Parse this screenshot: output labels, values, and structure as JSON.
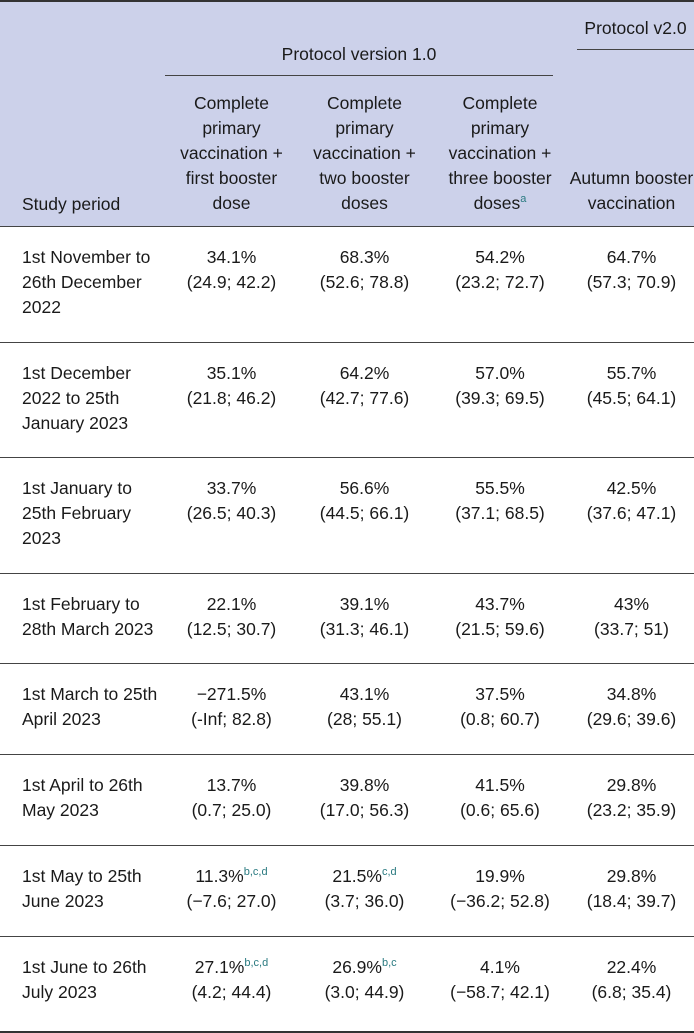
{
  "header": {
    "study_period": "Study period",
    "protocol_v1": "Protocol version 1.0",
    "protocol_v2": "Protocol v2.0",
    "columns": [
      "Complete primary vaccination + first booster dose",
      "Complete primary vaccination + two booster doses",
      "Complete primary vaccination + three booster doses",
      "Autumn booster vaccination"
    ],
    "col3_footnote": "a"
  },
  "rows": [
    {
      "period": "1st November to 26th December 2022",
      "c1": {
        "est": "34.1%",
        "ci": "(24.9; 42.2)",
        "fn": ""
      },
      "c2": {
        "est": "68.3%",
        "ci": "(52.6; 78.8)",
        "fn": ""
      },
      "c3": {
        "est": "54.2%",
        "ci": "(23.2; 72.7)",
        "fn": ""
      },
      "c4": {
        "est": "64.7%",
        "ci": "(57.3; 70.9)",
        "fn": ""
      }
    },
    {
      "period": "1st December 2022 to 25th January 2023",
      "c1": {
        "est": "35.1%",
        "ci": "(21.8; 46.2)",
        "fn": ""
      },
      "c2": {
        "est": "64.2%",
        "ci": "(42.7; 77.6)",
        "fn": ""
      },
      "c3": {
        "est": "57.0%",
        "ci": "(39.3; 69.5)",
        "fn": ""
      },
      "c4": {
        "est": "55.7%",
        "ci": "(45.5; 64.1)",
        "fn": ""
      }
    },
    {
      "period": "1st January to 25th February 2023",
      "c1": {
        "est": "33.7%",
        "ci": "(26.5; 40.3)",
        "fn": ""
      },
      "c2": {
        "est": "56.6%",
        "ci": "(44.5; 66.1)",
        "fn": ""
      },
      "c3": {
        "est": "55.5%",
        "ci": "(37.1; 68.5)",
        "fn": ""
      },
      "c4": {
        "est": "42.5%",
        "ci": "(37.6; 47.1)",
        "fn": ""
      }
    },
    {
      "period": "1st February to 28th March 2023",
      "c1": {
        "est": "22.1%",
        "ci": "(12.5; 30.7)",
        "fn": ""
      },
      "c2": {
        "est": "39.1%",
        "ci": "(31.3; 46.1)",
        "fn": ""
      },
      "c3": {
        "est": "43.7%",
        "ci": "(21.5; 59.6)",
        "fn": ""
      },
      "c4": {
        "est": "43%",
        "ci": "(33.7; 51)",
        "fn": ""
      }
    },
    {
      "period": "1st March to 25th April 2023",
      "c1": {
        "est": "−271.5%",
        "ci": "(-Inf; 82.8)",
        "fn": ""
      },
      "c2": {
        "est": "43.1%",
        "ci": "(28; 55.1)",
        "fn": ""
      },
      "c3": {
        "est": "37.5%",
        "ci": "(0.8; 60.7)",
        "fn": ""
      },
      "c4": {
        "est": "34.8%",
        "ci": "(29.6; 39.6)",
        "fn": ""
      }
    },
    {
      "period": "1st April to 26th May 2023",
      "c1": {
        "est": "13.7%",
        "ci": "(0.7; 25.0)",
        "fn": ""
      },
      "c2": {
        "est": "39.8%",
        "ci": "(17.0; 56.3)",
        "fn": ""
      },
      "c3": {
        "est": "41.5%",
        "ci": "(0.6; 65.6)",
        "fn": ""
      },
      "c4": {
        "est": "29.8%",
        "ci": "(23.2; 35.9)",
        "fn": ""
      }
    },
    {
      "period": "1st May to 25th June 2023",
      "c1": {
        "est": "11.3%",
        "ci": "(−7.6; 27.0)",
        "fn": "b,c,d"
      },
      "c2": {
        "est": "21.5%",
        "ci": "(3.7; 36.0)",
        "fn": "c,d"
      },
      "c3": {
        "est": "19.9%",
        "ci": "(−36.2; 52.8)",
        "fn": ""
      },
      "c4": {
        "est": "29.8%",
        "ci": "(18.4; 39.7)",
        "fn": ""
      }
    },
    {
      "period": "1st June to 26th July 2023",
      "c1": {
        "est": "27.1%",
        "ci": "(4.2; 44.4)",
        "fn": "b,c,d"
      },
      "c2": {
        "est": "26.9%",
        "ci": "(3.0; 44.9)",
        "fn": "b,c"
      },
      "c3": {
        "est": "4.1%",
        "ci": "(−58.7; 42.1)",
        "fn": ""
      },
      "c4": {
        "est": "22.4%",
        "ci": "(6.8; 35.4)",
        "fn": ""
      }
    }
  ]
}
